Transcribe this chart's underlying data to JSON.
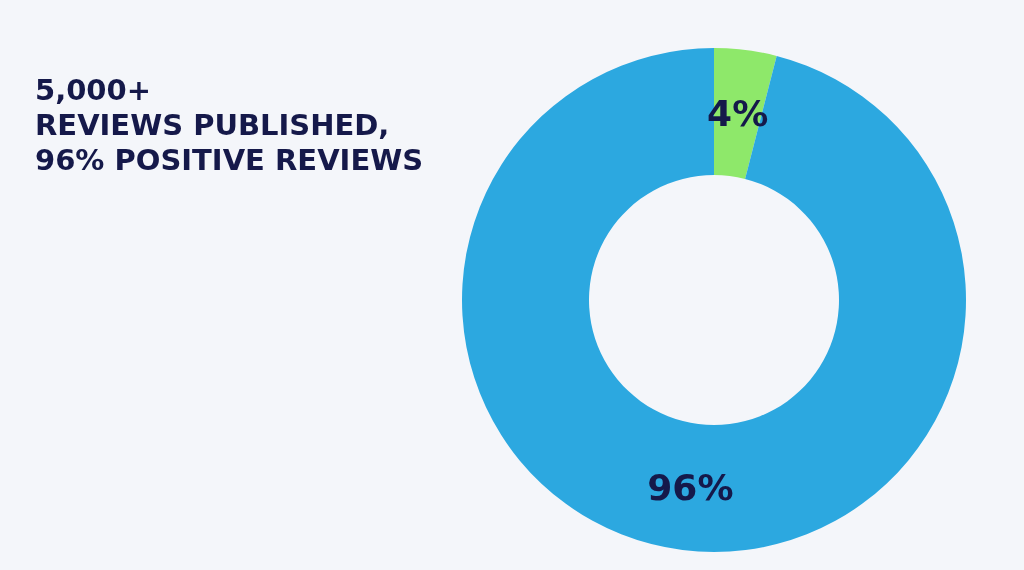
{
  "chart_data": {
    "type": "donut",
    "title": "5,000+\nREVIEWS PUBLISHED,\n96% POSITIVE REVIEWS",
    "categories": [
      null,
      null
    ],
    "values": [
      4,
      96
    ],
    "colors": [
      "#8ee86a",
      "#2ca8e0"
    ],
    "value_labels": [
      "4%",
      "96%"
    ]
  }
}
